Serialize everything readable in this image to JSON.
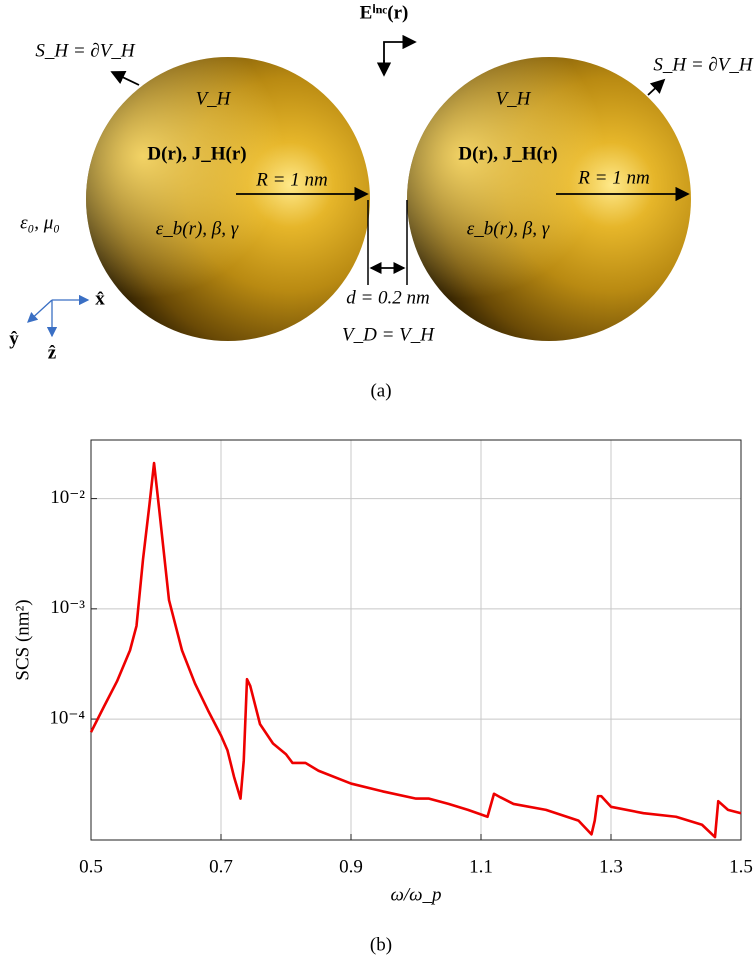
{
  "diagram": {
    "incident_field": "Eⁱⁿᶜ(r)",
    "surface_left": "S_H = ∂V_H",
    "surface_right": "S_H = ∂V_H",
    "volume_left": "V_H",
    "volume_right": "V_H",
    "fields_left": "D(r), J_H(r)",
    "fields_right": "D(r), J_H(r)",
    "radius_left": "R = 1 nm",
    "radius_right": "R = 1 nm",
    "material_left": "ε_b(r), β, γ",
    "material_right": "ε_b(r), β, γ",
    "background": "ε₀, μ₀",
    "gap": "d = 0.2 nm",
    "domain": "V_D = V_H",
    "axis_x": "x̂",
    "axis_y": "ŷ",
    "axis_z": "ẑ",
    "caption": "(a)"
  },
  "chart_data": {
    "type": "line",
    "xlabel": "ω/ω_p",
    "ylabel": "SCS (nm²)",
    "x": [
      0.5,
      0.52,
      0.54,
      0.56,
      0.57,
      0.58,
      0.59,
      0.597,
      0.605,
      0.62,
      0.64,
      0.66,
      0.68,
      0.7,
      0.71,
      0.72,
      0.73,
      0.735,
      0.74,
      0.745,
      0.76,
      0.78,
      0.8,
      0.81,
      0.83,
      0.85,
      0.9,
      0.95,
      1.0,
      1.02,
      1.05,
      1.08,
      1.11,
      1.12,
      1.13,
      1.15,
      1.2,
      1.25,
      1.27,
      1.275,
      1.28,
      1.285,
      1.3,
      1.35,
      1.4,
      1.44,
      1.46,
      1.465,
      1.48,
      1.5
    ],
    "values": [
      7.6e-05,
      0.00013,
      0.00022,
      0.00042,
      0.0007,
      0.0028,
      0.0089,
      0.021,
      0.0079,
      0.0012,
      0.00042,
      0.00021,
      0.00012,
      7.1e-05,
      5.2e-05,
      3e-05,
      1.9e-05,
      4.2e-05,
      0.00023,
      0.0002,
      9e-05,
      6e-05,
      4.8e-05,
      4e-05,
      4e-05,
      3.4e-05,
      2.6e-05,
      2.2e-05,
      1.9e-05,
      1.9e-05,
      1.7e-05,
      1.5e-05,
      1.3e-05,
      2.1e-05,
      1.95e-05,
      1.7e-05,
      1.5e-05,
      1.2e-05,
      9e-06,
      1.2e-05,
      2e-05,
      2e-05,
      1.6e-05,
      1.4e-05,
      1.3e-05,
      1.1e-05,
      8.5e-06,
      1.8e-05,
      1.5e-05,
      1.4e-05
    ],
    "color": "#ee0000",
    "xlim": [
      0.5,
      1.5
    ],
    "xticks": [
      0.5,
      0.7,
      0.9,
      1.1,
      1.3,
      1.5
    ],
    "ylim": [
      8e-06,
      0.034
    ],
    "yscale": "log",
    "yticks": [
      {
        "value": 0.0001,
        "label": "10⁻⁴"
      },
      {
        "value": 0.001,
        "label": "10⁻³"
      },
      {
        "value": 0.01,
        "label": "10⁻²"
      }
    ],
    "grid": true
  },
  "caption_b": "(b)"
}
